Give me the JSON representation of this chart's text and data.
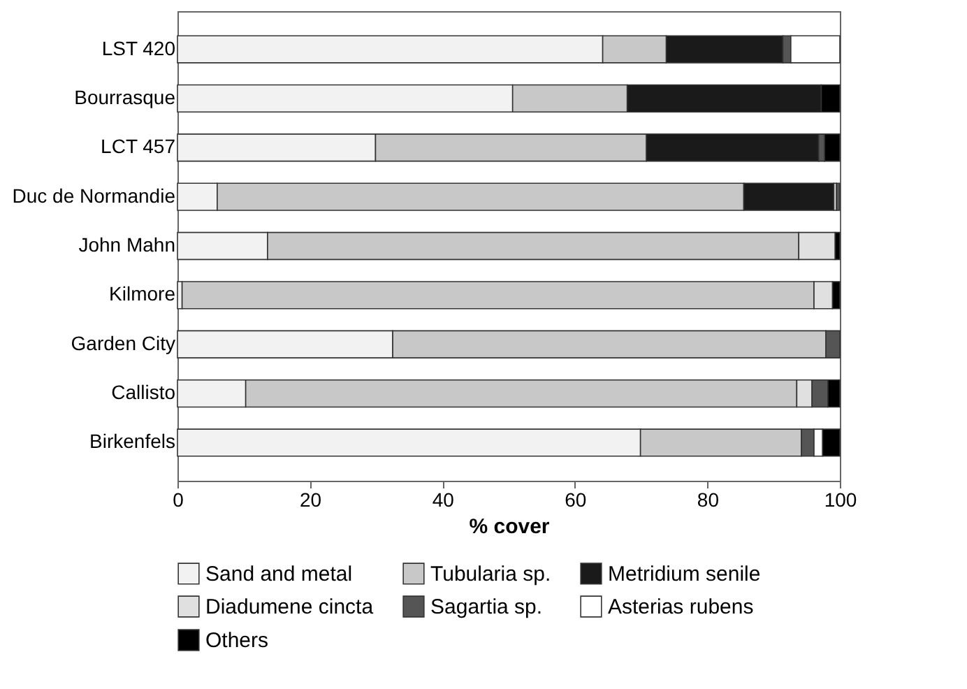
{
  "chart_data": {
    "type": "bar",
    "orientation": "horizontal",
    "stacked": true,
    "xlabel": "% cover",
    "xlim": [
      0,
      100
    ],
    "xticks": [
      0,
      20,
      40,
      60,
      80,
      100
    ],
    "grid": false,
    "legend": "bottom",
    "categories": [
      "LST 420",
      "Bourrasque",
      "LCT 457",
      "Duc de Normandie",
      "John Mahn",
      "Kilmore",
      "Garden City",
      "Callisto",
      "Birkenfels"
    ],
    "series": [
      {
        "name": "Sand and metal",
        "color": "#f2f2f2",
        "values": [
          64.2,
          50.6,
          29.9,
          6.0,
          13.6,
          0.7,
          32.5,
          10.3,
          69.9
        ]
      },
      {
        "name": "Tubularia sp.",
        "color": "#c8c8c8",
        "values": [
          9.6,
          17.3,
          40.9,
          79.5,
          80.2,
          95.4,
          65.4,
          83.2,
          24.3
        ]
      },
      {
        "name": "Metridium senile",
        "color": "#1a1a1a",
        "values": [
          17.6,
          29.3,
          26.0,
          13.6,
          0,
          0,
          0,
          0,
          0
        ]
      },
      {
        "name": "Diadumene cincta",
        "color": "#e0e0e0",
        "values": [
          0,
          0,
          0,
          0.4,
          5.5,
          2.8,
          0,
          2.3,
          0
        ]
      },
      {
        "name": "Sagartia sp.",
        "color": "#555555",
        "values": [
          1.2,
          0,
          0.9,
          0.5,
          0,
          0,
          2.1,
          2.4,
          1.9
        ]
      },
      {
        "name": "Asterias rubens",
        "color": "#ffffff",
        "values": [
          7.4,
          0,
          0,
          0,
          0,
          0,
          0,
          0,
          1.3
        ]
      },
      {
        "name": "Others",
        "color": "#000000",
        "values": [
          0,
          2.8,
          2.3,
          0,
          0.7,
          1.1,
          0,
          1.8,
          2.6
        ]
      }
    ]
  }
}
